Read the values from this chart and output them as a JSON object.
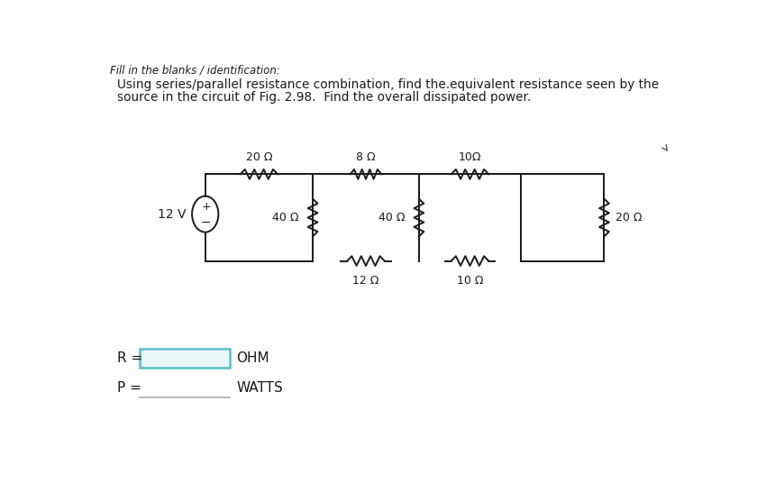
{
  "title_line": "Fill in the blanks / identification:",
  "question_line1": "Using series/parallel resistance combination, find the.equivalent resistance seen by the",
  "question_line2": "source in the circuit of Fig. 2.98.  Find the overall dissipated power.",
  "source_label": "12 V",
  "R_top1": "20 Ω",
  "R_top2": "8 Ω",
  "R_top3": "10Ω",
  "R_mid1": "40 Ω",
  "R_mid2": "40 Ω",
  "R_right": "20 Ω",
  "R_bot1": "12 Ω",
  "R_bot2": "10 Ω",
  "answer_R_label": "R =",
  "answer_R_unit": "OHM",
  "answer_P_label": "P =",
  "answer_P_unit": "WATTS",
  "bg_color": "#ffffff",
  "line_color": "#1a1a1a",
  "box_border_color": "#5bbccc",
  "box_fill_color": "#eaf8f8"
}
